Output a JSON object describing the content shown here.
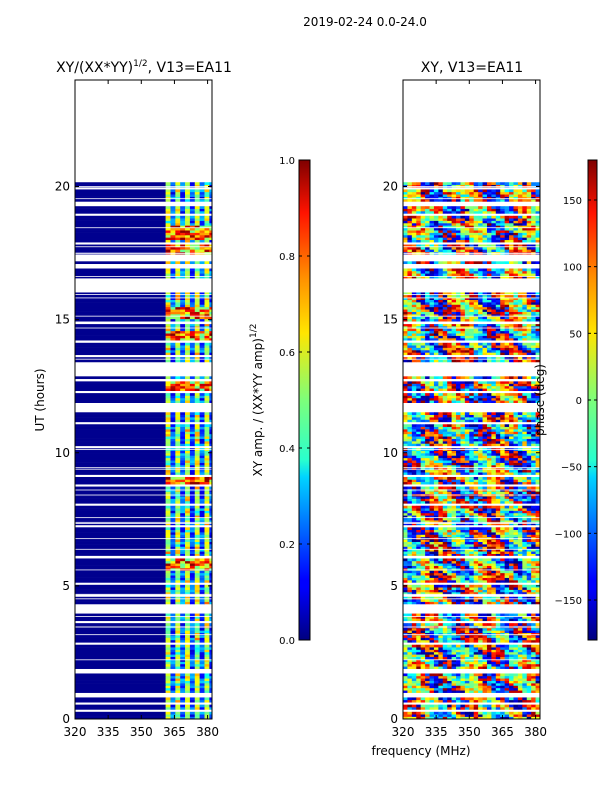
{
  "figure_title": "2019-02-24 0.0-24.0",
  "xlabel_shared": "frequency (MHz)",
  "colors": {
    "frame": "#000000",
    "background": "#ffffff"
  },
  "chart_data": [
    {
      "type": "heatmap",
      "title_main": "XY/(XX*YY)",
      "title_sup": "1/2",
      "title_suffix": ", V13=EA11",
      "ylabel": "UT (hours)",
      "xlim": [
        320,
        382
      ],
      "ylim": [
        0,
        24
      ],
      "xticks": [
        320,
        335,
        350,
        365,
        380
      ],
      "xtick_labels": [
        "320",
        "335",
        "350",
        "365",
        "380"
      ],
      "yticks": [
        0,
        5,
        10,
        15,
        20
      ],
      "ytick_labels": [
        "0",
        "5",
        "10",
        "15",
        "20"
      ],
      "data_range_hours": [
        0.0,
        20.1
      ],
      "active_freq_band_mhz": [
        361,
        382
      ],
      "high_amplitude_times_hours": [
        5.8,
        8.9,
        12.4,
        14.3,
        15.2,
        17.6,
        18.2
      ],
      "colorbar": {
        "label_main": "XY amp. / (XX*YY amp)",
        "label_sup": "1/2",
        "min": 0.0,
        "max": 1.0,
        "ticks": [
          0.0,
          0.2,
          0.4,
          0.6,
          0.8,
          1.0
        ],
        "tick_labels": [
          "0.0",
          "0.2",
          "0.4",
          "0.6",
          "0.8",
          "1.0"
        ],
        "colormap": "jet"
      }
    },
    {
      "type": "heatmap",
      "title": "XY, V13=EA11",
      "xlim": [
        320,
        382
      ],
      "ylim": [
        0,
        24
      ],
      "xticks": [
        320,
        335,
        350,
        365,
        380
      ],
      "xtick_labels": [
        "320",
        "335",
        "350",
        "365",
        "380"
      ],
      "yticks": [
        0,
        5,
        10,
        15,
        20
      ],
      "ytick_labels": [
        "0",
        "5",
        "10",
        "15",
        "20"
      ],
      "data_range_hours": [
        0.0,
        20.1
      ],
      "colorbar": {
        "label": "phase (deg)",
        "min": -180,
        "max": 180,
        "ticks": [
          -150,
          -100,
          -50,
          0,
          50,
          100,
          150
        ],
        "tick_labels": [
          "−150",
          "−100",
          "−50",
          "0",
          "50",
          "100",
          "150"
        ],
        "colormap": "jet"
      }
    }
  ]
}
